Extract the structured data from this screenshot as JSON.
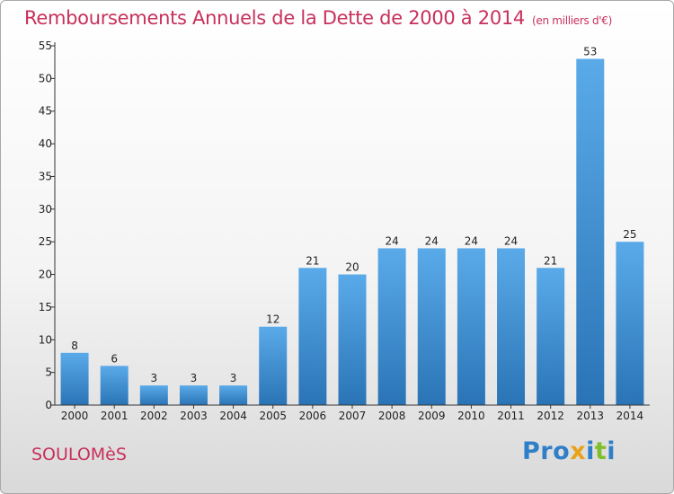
{
  "title": {
    "main": "Remboursements Annuels de la Dette de 2000 à 2014",
    "unit": "(en milliers d'€)"
  },
  "commune": "SOULOMèS",
  "logo": {
    "text": "Proxiti",
    "letters": [
      {
        "ch": "P",
        "color": "#2f7fc8"
      },
      {
        "ch": "r",
        "color": "#2f7fc8"
      },
      {
        "ch": "o",
        "color": "#2f7fc8"
      },
      {
        "ch": "x",
        "color": "#e8a21a"
      },
      {
        "ch": "i",
        "color": "#2f7fc8"
      },
      {
        "ch": "t",
        "color": "#7fbf2a"
      },
      {
        "ch": "i",
        "color": "#2f7fc8"
      }
    ]
  },
  "colors": {
    "title": "#c8305c",
    "bar_top": "#5aaae9",
    "bar_bottom": "#2a74b6",
    "axis": "#333333"
  },
  "chart_data": {
    "type": "bar",
    "title": "Remboursements Annuels de la Dette de 2000 à 2014",
    "xlabel": "",
    "ylabel": "",
    "categories": [
      "2000",
      "2001",
      "2002",
      "2003",
      "2004",
      "2005",
      "2006",
      "2007",
      "2008",
      "2009",
      "2010",
      "2011",
      "2012",
      "2013",
      "2014"
    ],
    "values": [
      8,
      6,
      3,
      3,
      3,
      12,
      21,
      20,
      24,
      24,
      24,
      24,
      21,
      53,
      25
    ],
    "ylim": [
      0,
      55
    ],
    "yticks": [
      0,
      5,
      10,
      15,
      20,
      25,
      30,
      35,
      40,
      45,
      50,
      55
    ],
    "grid": false,
    "data_labels": true
  }
}
